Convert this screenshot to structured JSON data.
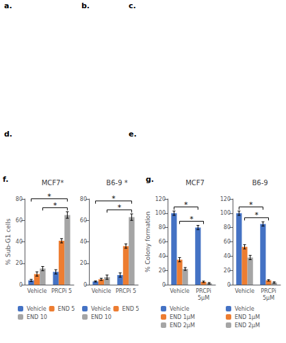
{
  "chart_data": [
    {
      "type": "bar",
      "title": "MCF7*",
      "ylabel": "% Sub-G1 cells",
      "categories": [
        "Vehicle",
        "PRCPi 5"
      ],
      "series": [
        {
          "name": "Vehicle",
          "color": "#4472C4",
          "values": [
            4,
            12
          ],
          "errors": [
            1,
            2
          ]
        },
        {
          "name": "END 5",
          "color": "#ED7D31",
          "values": [
            10,
            41
          ],
          "errors": [
            2,
            2
          ]
        },
        {
          "name": "END 10",
          "color": "#A5A5A5",
          "values": [
            15,
            65
          ],
          "errors": [
            2,
            3
          ]
        }
      ],
      "ylim": [
        0,
        80
      ],
      "yticks": [
        0,
        20,
        40,
        60,
        80
      ],
      "grid": false,
      "legend": "bottom",
      "annotations": [
        "f.",
        "a.",
        "b.",
        "c.",
        "d.",
        "e.",
        {
          "text": "*",
          "from": {
            "category": "Vehicle",
            "series": "END 10"
          },
          "to": {
            "category": "PRCPi 5",
            "series": "END 10"
          }
        },
        {
          "text": "*",
          "from": {
            "category": "Vehicle",
            "series": "Vehicle"
          },
          "to": {
            "category": "PRCPi 5",
            "series": "END 10"
          }
        }
      ]
    },
    {
      "type": "bar",
      "title": "B6-9 *",
      "categories": [
        "Vehicle",
        "PRCPi 5"
      ],
      "series": [
        {
          "name": "Vehicle",
          "color": "#4472C4",
          "values": [
            3,
            9
          ],
          "errors": [
            0.5,
            2
          ]
        },
        {
          "name": "END 5",
          "color": "#ED7D31",
          "values": [
            5,
            36
          ],
          "errors": [
            1,
            2
          ]
        },
        {
          "name": "END 10",
          "color": "#A5A5A5",
          "values": [
            7,
            63
          ],
          "errors": [
            2,
            3
          ]
        }
      ],
      "ylim": [
        0,
        80
      ],
      "yticks": [
        0,
        20,
        40,
        60,
        80
      ],
      "grid": false,
      "legend": "bottom",
      "annotations": [
        {
          "text": "*",
          "from": {
            "category": "Vehicle",
            "series": "END 10"
          },
          "to": {
            "category": "PRCPi 5",
            "series": "END 10"
          }
        },
        {
          "text": "*",
          "from": {
            "category": "Vehicle",
            "series": "Vehicle"
          },
          "to": {
            "category": "PRCPi 5",
            "series": "END 10"
          }
        }
      ]
    },
    {
      "type": "bar",
      "title": "MCF7",
      "ylabel": "% Colony formation",
      "categories": [
        "Vehicle",
        "PRCPi\n5μM"
      ],
      "series": [
        {
          "name": "Vehicle",
          "color": "#4472C4",
          "values": [
            100,
            80
          ],
          "errors": [
            3,
            3
          ]
        },
        {
          "name": "END 1μM",
          "color": "#ED7D31",
          "values": [
            35,
            4
          ],
          "errors": [
            3,
            1
          ]
        },
        {
          "name": "END 2μM",
          "color": "#A5A5A5",
          "values": [
            22,
            2
          ],
          "errors": [
            2,
            1
          ]
        }
      ],
      "ylim": [
        0,
        120
      ],
      "yticks": [
        0,
        20,
        40,
        60,
        80,
        100,
        120
      ],
      "grid": false,
      "legend": "bottom",
      "annotations": [
        "g.",
        {
          "text": "*",
          "from": {
            "category": "Vehicle",
            "series": "END 1μM"
          },
          "to": {
            "category": "PRCPi\n5μM",
            "series": "END 1μM"
          }
        },
        {
          "text": "*",
          "from": {
            "category": "Vehicle",
            "series": "Vehicle"
          },
          "to": {
            "category": "PRCPi\n5μM",
            "series": "Vehicle"
          }
        }
      ]
    },
    {
      "type": "bar",
      "title": "B6-9",
      "categories": [
        "Vehicle",
        "PRCPi\n5μM"
      ],
      "series": [
        {
          "name": "Vehicle",
          "color": "#4472C4",
          "values": [
            100,
            85
          ],
          "errors": [
            3,
            3
          ]
        },
        {
          "name": "END 1μM",
          "color": "#ED7D31",
          "values": [
            53,
            6
          ],
          "errors": [
            3,
            1
          ]
        },
        {
          "name": "END 2μM",
          "color": "#A5A5A5",
          "values": [
            38,
            3
          ],
          "errors": [
            3,
            1
          ]
        }
      ],
      "ylim": [
        0,
        120
      ],
      "yticks": [
        0,
        20,
        40,
        60,
        80,
        100,
        120
      ],
      "grid": false,
      "legend": "bottom",
      "annotations": [
        {
          "text": "*",
          "from": {
            "category": "Vehicle",
            "series": "END 1μM"
          },
          "to": {
            "category": "PRCPi\n5μM",
            "series": "END 1μM"
          }
        },
        {
          "text": "*",
          "from": {
            "category": "Vehicle",
            "series": "Vehicle"
          },
          "to": {
            "category": "PRCPi\n5μM",
            "series": "Vehicle"
          }
        }
      ]
    }
  ]
}
